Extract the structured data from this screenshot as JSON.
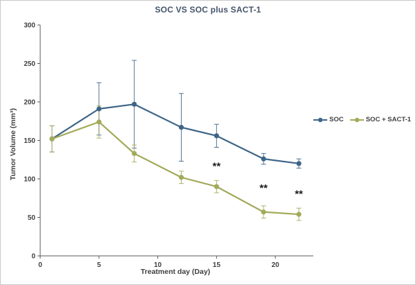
{
  "title": "SOC VS SOC plus SACT-1",
  "chart_data": {
    "type": "line",
    "x": [
      1,
      5,
      8,
      12,
      15,
      19,
      22
    ],
    "series": [
      {
        "name": "SOC",
        "color": "#3e6587",
        "values": [
          152,
          191,
          197,
          167,
          156,
          126,
          120
        ],
        "error": [
          17,
          34,
          57,
          44,
          15,
          7,
          6
        ]
      },
      {
        "name": "SOC + SACT-1",
        "color": "#a3aa5b",
        "values": [
          152,
          174,
          133,
          102,
          90,
          57,
          54
        ],
        "error": [
          17,
          21,
          11,
          8,
          8,
          8,
          8
        ]
      }
    ],
    "annotations": [
      {
        "x": 15,
        "y": 112,
        "text": "**"
      },
      {
        "x": 19,
        "y": 84,
        "text": "**"
      },
      {
        "x": 22,
        "y": 76,
        "text": "**"
      }
    ],
    "title": "SOC VS SOC plus SACT-1",
    "xlabel": "Treatment day (Day)",
    "ylabel": "Tumor Volume (mm³)",
    "xlim": [
      0,
      23
    ],
    "ylim": [
      0,
      300
    ],
    "xticks": [
      0,
      5,
      10,
      15,
      20
    ],
    "yticks": [
      0,
      50,
      100,
      150,
      200,
      250,
      300
    ],
    "legend_position": "right",
    "grid": false,
    "axis_color": "#595959",
    "tick_label_color": "#404040",
    "annotation_color": "#1a1a1a"
  }
}
